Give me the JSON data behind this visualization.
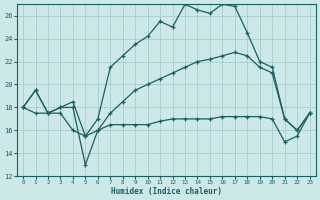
{
  "bg_color": "#cce8e8",
  "grid_color": "#aacccc",
  "line_color": "#1a6060",
  "xlabel": "Humidex (Indice chaleur)",
  "xlim": [
    -0.5,
    23.5
  ],
  "ylim": [
    12,
    27
  ],
  "yticks": [
    12,
    14,
    16,
    18,
    20,
    22,
    24,
    26
  ],
  "xticks": [
    0,
    1,
    2,
    3,
    4,
    5,
    6,
    7,
    8,
    9,
    10,
    11,
    12,
    13,
    14,
    15,
    16,
    17,
    18,
    19,
    20,
    21,
    22,
    23
  ],
  "line_upper_x": [
    0,
    1,
    2,
    3,
    4,
    5,
    6,
    7,
    8,
    9,
    10,
    11,
    12,
    13,
    14,
    15,
    16,
    17,
    18,
    19,
    20,
    21,
    22,
    23
  ],
  "line_upper_y": [
    18.0,
    19.5,
    17.5,
    18.0,
    18.5,
    15.5,
    17.0,
    21.5,
    22.5,
    23.5,
    24.2,
    25.5,
    25.0,
    27.0,
    26.5,
    26.2,
    27.0,
    26.8,
    24.5,
    22.0,
    21.5,
    17.0,
    16.0,
    17.5
  ],
  "line_mid_x": [
    0,
    1,
    2,
    3,
    4,
    5,
    6,
    7,
    8,
    9,
    10,
    11,
    12,
    13,
    14,
    15,
    16,
    17,
    18,
    19,
    20,
    21,
    22,
    23
  ],
  "line_mid_y": [
    18.0,
    19.5,
    17.5,
    18.0,
    18.0,
    13.0,
    16.0,
    17.5,
    18.5,
    19.5,
    20.0,
    20.5,
    21.0,
    21.5,
    22.0,
    22.2,
    22.5,
    22.8,
    22.5,
    21.5,
    21.0,
    17.0,
    16.0,
    17.5
  ],
  "line_lower_x": [
    0,
    1,
    2,
    3,
    4,
    5,
    6,
    7,
    8,
    9,
    10,
    11,
    12,
    13,
    14,
    15,
    16,
    17,
    18,
    19,
    20,
    21,
    22,
    23
  ],
  "line_lower_y": [
    18.0,
    17.5,
    17.5,
    17.5,
    16.0,
    15.5,
    16.0,
    16.5,
    16.5,
    16.5,
    16.5,
    16.8,
    17.0,
    17.0,
    17.0,
    17.0,
    17.2,
    17.2,
    17.2,
    17.2,
    17.0,
    15.0,
    15.5,
    17.5
  ]
}
